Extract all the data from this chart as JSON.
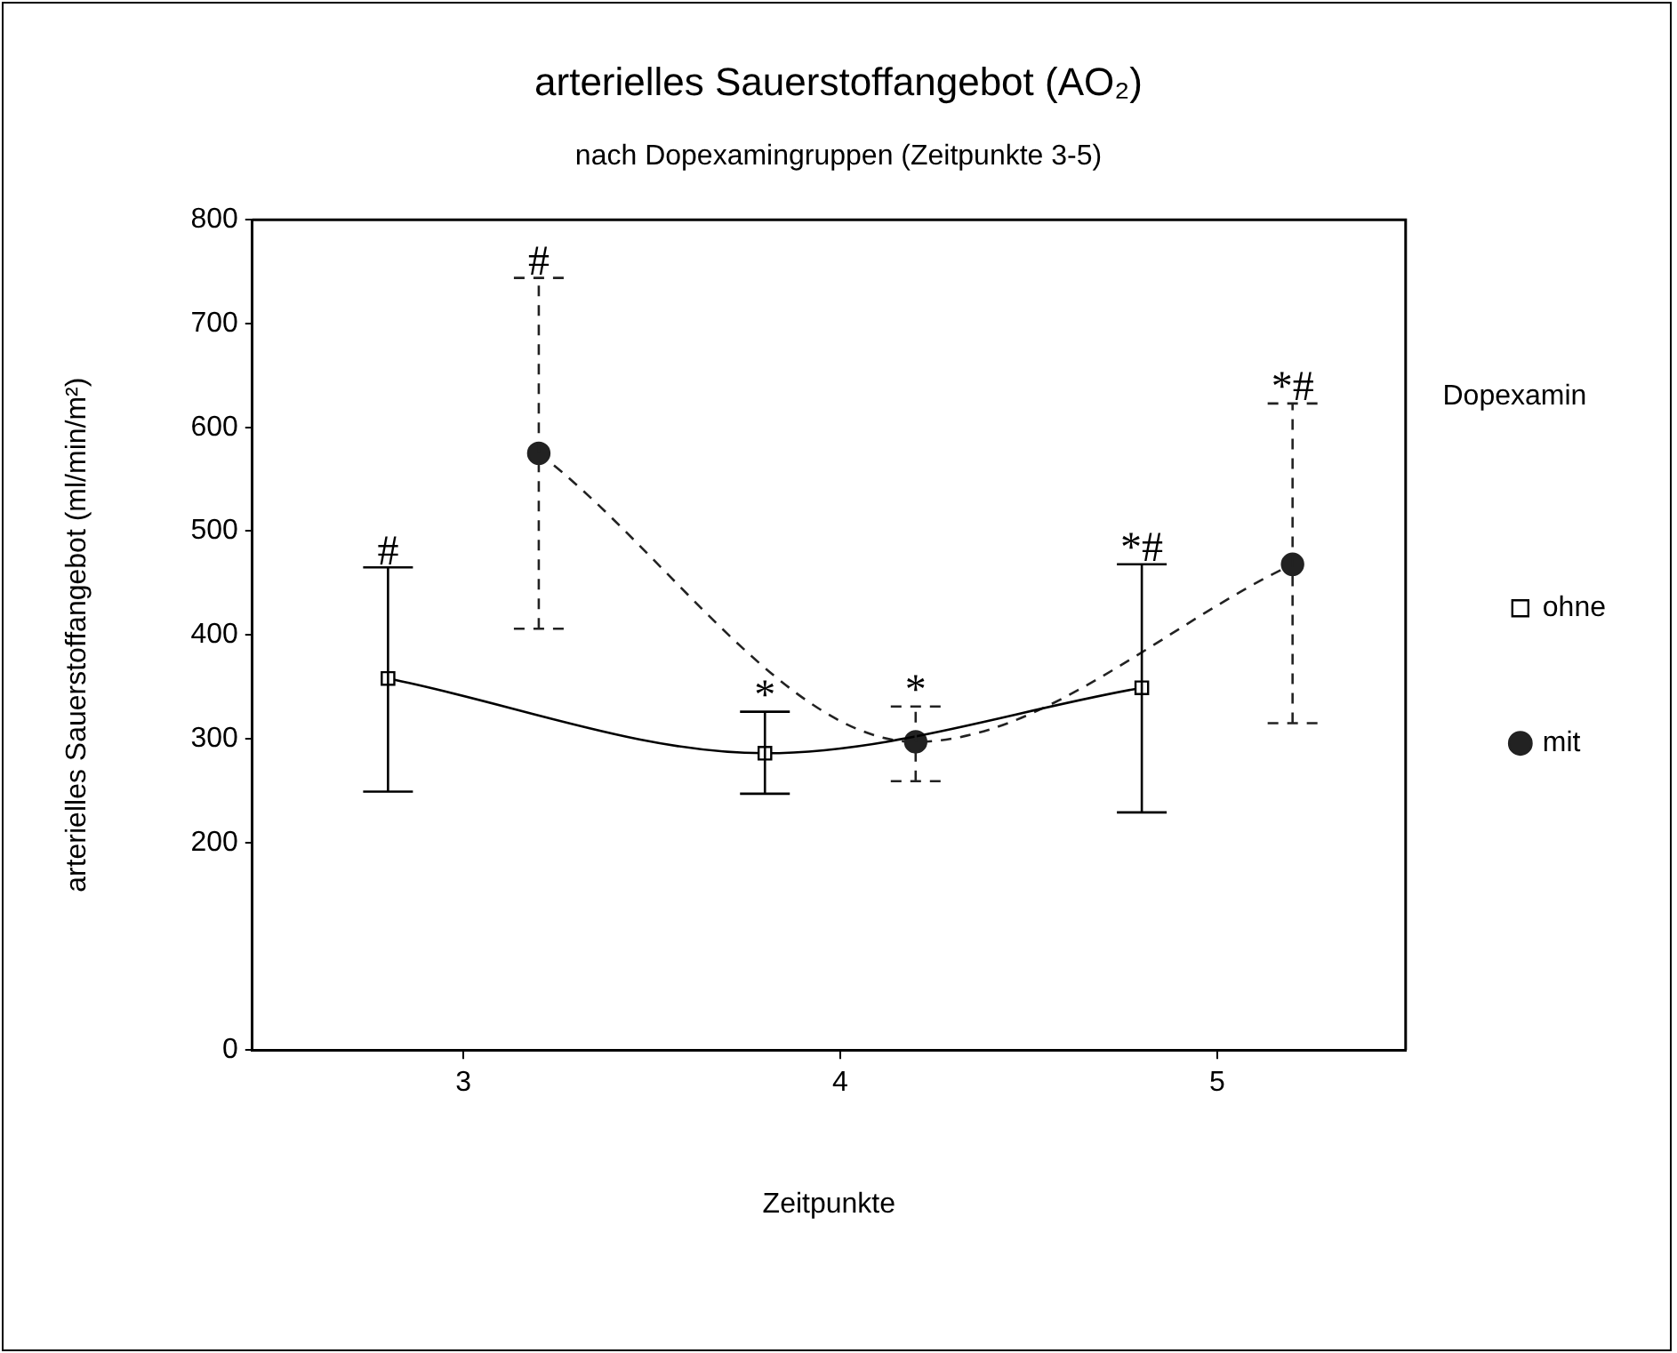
{
  "chart_data": {
    "type": "line",
    "title": "arterielles Sauerstoffangebot (AO₂)",
    "subtitle": "nach Dopexamingruppen (Zeitpunkte 3-5)",
    "xlabel": "Zeitpunkte",
    "ylabel": "arterielles Sauerstoffangebot (ml/min/m²)",
    "legend_title": "Dopexamin",
    "legend": "right",
    "xlim": [
      2.44,
      5.5
    ],
    "xticks": [
      3,
      4,
      5
    ],
    "ylim": [
      0,
      800
    ],
    "yticks": [
      0,
      200,
      300,
      400,
      500,
      600,
      700,
      800
    ],
    "grid": false,
    "series": [
      {
        "name": "ohne",
        "color": "#000000",
        "marker": "square",
        "line_style": "solid",
        "x": [
          2.8,
          3.8,
          4.8
        ],
        "values": [
          358,
          286,
          349
        ],
        "errors": [
          [
            249,
            465
          ],
          [
            247,
            326
          ],
          [
            229,
            468
          ]
        ]
      },
      {
        "name": "mit",
        "color": "#222222",
        "marker": "circle",
        "line_style": "dashed",
        "x": [
          3.2,
          4.2,
          5.2
        ],
        "values": [
          575,
          297,
          468
        ],
        "errors": [
          [
            406,
            744
          ],
          [
            259,
            331
          ],
          [
            315,
            623
          ]
        ]
      }
    ],
    "annotations": [
      "#",
      "#",
      "*",
      "*",
      "*#",
      "*#"
    ]
  }
}
